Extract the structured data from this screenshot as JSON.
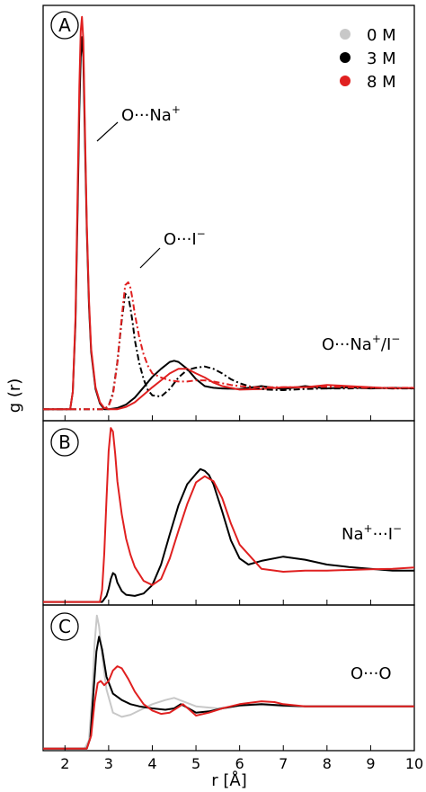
{
  "figure": {
    "ylabel": "g (r)",
    "xlabel": "r [Å]",
    "x_ticks": [
      "2",
      "3",
      "4",
      "5",
      "6",
      "7",
      "8",
      "9",
      "10"
    ],
    "x_tick_values": [
      2,
      3,
      4,
      5,
      6,
      7,
      8,
      9,
      10
    ],
    "xlim": [
      1.5,
      10
    ],
    "legend": {
      "placement": "top-right",
      "items": [
        {
          "label": "0 M",
          "color": "#c8c8c8"
        },
        {
          "label": "3 M",
          "color": "#000000"
        },
        {
          "label": "8 M",
          "color": "#e02020"
        }
      ]
    }
  },
  "chart_data": [
    {
      "type": "line",
      "panel": "A",
      "ylim": [
        -0.2,
        7.0
      ],
      "annotations": {
        "ona": {
          "main": "O···Na",
          "sup": "+"
        },
        "oi": {
          "main": "O···I",
          "sup": "−"
        },
        "onai": {
          "main": "O···Na",
          "sup": "+",
          "mid": "/I",
          "sup2": "−"
        }
      },
      "series": [
        {
          "name": "3 M",
          "group": "O···Na+",
          "color": "#000000",
          "dash": "",
          "x": [
            1.5,
            2.12,
            2.18,
            2.24,
            2.29,
            2.33,
            2.36,
            2.39,
            2.42,
            2.46,
            2.5,
            2.55,
            2.6,
            2.7,
            2.8,
            2.9,
            3.0,
            3.2,
            3.4,
            3.6,
            3.8,
            4.0,
            4.2,
            4.4,
            4.5,
            4.6,
            4.8,
            5.0,
            5.2,
            5.4,
            5.6,
            6.0,
            6.5,
            7.0,
            7.5,
            8.0,
            8.5,
            9.0,
            9.5,
            10.0
          ],
          "y": [
            0,
            0,
            0.3,
            1.5,
            3.5,
            5.2,
            6.1,
            6.45,
            6.1,
            4.6,
            3.1,
            1.8,
            1.0,
            0.35,
            0.1,
            0.0,
            0.0,
            0.02,
            0.08,
            0.2,
            0.38,
            0.56,
            0.7,
            0.82,
            0.84,
            0.82,
            0.7,
            0.52,
            0.4,
            0.37,
            0.36,
            0.35,
            0.4,
            0.35,
            0.4,
            0.36,
            0.38,
            0.36,
            0.37,
            0.36
          ]
        },
        {
          "name": "8 M",
          "group": "O···Na+",
          "color": "#e02020",
          "dash": "",
          "x": [
            1.5,
            2.12,
            2.18,
            2.24,
            2.29,
            2.33,
            2.36,
            2.39,
            2.42,
            2.46,
            2.5,
            2.55,
            2.6,
            2.7,
            2.8,
            2.9,
            3.0,
            3.2,
            3.4,
            3.6,
            3.8,
            4.0,
            4.2,
            4.4,
            4.6,
            4.8,
            5.0,
            5.2,
            5.4,
            5.6,
            6.0,
            6.5,
            7.0,
            7.5,
            8.0,
            8.5,
            9.0,
            9.5,
            10.0
          ],
          "y": [
            0,
            0,
            0.3,
            1.6,
            3.8,
            5.6,
            6.55,
            6.8,
            6.4,
            4.8,
            3.2,
            1.9,
            1.05,
            0.38,
            0.12,
            0.02,
            0.0,
            0.0,
            0.04,
            0.12,
            0.25,
            0.38,
            0.5,
            0.62,
            0.7,
            0.7,
            0.62,
            0.55,
            0.46,
            0.4,
            0.34,
            0.35,
            0.38,
            0.38,
            0.42,
            0.4,
            0.38,
            0.36,
            0.37
          ]
        },
        {
          "name": "3 M",
          "group": "O···I−",
          "color": "#000000",
          "dash": "7 3 2 3",
          "x": [
            1.5,
            2.6,
            2.9,
            3.0,
            3.1,
            3.2,
            3.3,
            3.38,
            3.45,
            3.5,
            3.55,
            3.6,
            3.7,
            3.8,
            3.9,
            4.0,
            4.2,
            4.4,
            4.6,
            4.8,
            5.0,
            5.2,
            5.4,
            5.6,
            5.8,
            6.0,
            6.3,
            6.6,
            7.0,
            7.5,
            8.0,
            8.5,
            9.0,
            9.5,
            10.0
          ],
          "y": [
            0,
            0,
            0.0,
            0.06,
            0.28,
            0.82,
            1.55,
            2.0,
            1.95,
            1.75,
            1.5,
            1.2,
            0.8,
            0.52,
            0.33,
            0.24,
            0.22,
            0.35,
            0.55,
            0.68,
            0.72,
            0.74,
            0.7,
            0.62,
            0.52,
            0.45,
            0.38,
            0.34,
            0.33,
            0.35,
            0.36,
            0.36,
            0.37,
            0.36,
            0.36
          ]
        },
        {
          "name": "8 M",
          "group": "O···I−",
          "color": "#e02020",
          "dash": "7 3 2 3",
          "x": [
            1.5,
            2.6,
            2.9,
            3.0,
            3.1,
            3.2,
            3.3,
            3.38,
            3.45,
            3.5,
            3.55,
            3.6,
            3.7,
            3.8,
            3.9,
            4.0,
            4.2,
            4.4,
            4.6,
            4.8,
            5.0,
            5.2,
            5.4,
            5.6,
            5.8,
            6.0,
            6.3,
            6.6,
            7.0,
            7.5,
            8.0,
            8.5,
            9.0,
            9.5,
            10.0
          ],
          "y": [
            0,
            0,
            0.0,
            0.06,
            0.25,
            0.8,
            1.6,
            2.15,
            2.2,
            2.1,
            1.9,
            1.65,
            1.25,
            0.95,
            0.75,
            0.62,
            0.55,
            0.5,
            0.48,
            0.48,
            0.5,
            0.5,
            0.48,
            0.45,
            0.42,
            0.4,
            0.38,
            0.38,
            0.38,
            0.38,
            0.39,
            0.38,
            0.37,
            0.37,
            0.37
          ]
        }
      ]
    },
    {
      "type": "line",
      "panel": "B",
      "ylim": [
        -0.05,
        3.0
      ],
      "annotations": {
        "nai": {
          "main": "Na",
          "sup": "+",
          "mid": "···I",
          "sup2": "−"
        }
      },
      "series": [
        {
          "name": "3 M",
          "color": "#000000",
          "dash": "",
          "x": [
            1.5,
            2.85,
            2.95,
            3.0,
            3.05,
            3.1,
            3.15,
            3.2,
            3.3,
            3.4,
            3.6,
            3.8,
            4.0,
            4.2,
            4.4,
            4.6,
            4.8,
            5.0,
            5.1,
            5.2,
            5.3,
            5.4,
            5.6,
            5.8,
            6.0,
            6.2,
            6.5,
            7.0,
            7.5,
            8.0,
            8.5,
            9.0,
            9.5,
            10.0
          ],
          "y": [
            0,
            0,
            0.1,
            0.22,
            0.38,
            0.48,
            0.45,
            0.32,
            0.18,
            0.12,
            0.1,
            0.14,
            0.28,
            0.62,
            1.12,
            1.6,
            1.95,
            2.12,
            2.2,
            2.17,
            2.1,
            1.95,
            1.5,
            1.02,
            0.72,
            0.62,
            0.68,
            0.75,
            0.7,
            0.62,
            0.58,
            0.55,
            0.52,
            0.52
          ]
        },
        {
          "name": "8 M",
          "color": "#e02020",
          "dash": "",
          "x": [
            1.5,
            2.8,
            2.85,
            2.9,
            2.95,
            3.0,
            3.05,
            3.1,
            3.15,
            3.2,
            3.3,
            3.4,
            3.5,
            3.6,
            3.8,
            4.0,
            4.2,
            4.4,
            4.6,
            4.8,
            5.0,
            5.2,
            5.4,
            5.6,
            5.8,
            6.0,
            6.5,
            7.0,
            7.5,
            8.0,
            8.5,
            9.0,
            9.5,
            10.0
          ],
          "y": [
            0,
            0,
            0.2,
            0.8,
            1.7,
            2.5,
            2.88,
            2.82,
            2.45,
            2.0,
            1.45,
            1.05,
            0.78,
            0.58,
            0.35,
            0.28,
            0.38,
            0.72,
            1.18,
            1.62,
            1.98,
            2.08,
            2.0,
            1.72,
            1.3,
            0.95,
            0.55,
            0.5,
            0.52,
            0.52,
            0.53,
            0.54,
            0.55,
            0.57
          ]
        }
      ]
    },
    {
      "type": "line",
      "panel": "C",
      "ylim": [
        -0.05,
        3.4
      ],
      "annotations": {
        "oo": {
          "main": "O···O"
        }
      },
      "series": [
        {
          "name": "0 M",
          "color": "#c8c8c8",
          "dash": "",
          "x": [
            1.5,
            2.45,
            2.55,
            2.62,
            2.68,
            2.73,
            2.78,
            2.85,
            2.95,
            3.1,
            3.3,
            3.5,
            3.7,
            4.0,
            4.3,
            4.5,
            4.7,
            5.0,
            5.5,
            6.0,
            6.5,
            7.0,
            8.0,
            9.0,
            10.0
          ],
          "y": [
            0,
            0,
            0.2,
            1.2,
            2.5,
            3.15,
            2.9,
            2.2,
            1.4,
            0.85,
            0.75,
            0.8,
            0.9,
            1.05,
            1.15,
            1.2,
            1.12,
            1.0,
            0.95,
            1.02,
            1.03,
            1.0,
            1.0,
            1.0,
            1.0
          ]
        },
        {
          "name": "3 M",
          "color": "#000000",
          "dash": "",
          "x": [
            1.5,
            2.5,
            2.58,
            2.65,
            2.72,
            2.78,
            2.85,
            2.95,
            3.1,
            3.3,
            3.5,
            3.7,
            4.0,
            4.3,
            4.5,
            4.65,
            4.8,
            5.0,
            5.3,
            5.6,
            6.0,
            6.5,
            7.0,
            7.5,
            8.0,
            9.0,
            10.0
          ],
          "y": [
            0,
            0,
            0.25,
            1.3,
            2.3,
            2.65,
            2.35,
            1.7,
            1.3,
            1.15,
            1.05,
            1.0,
            0.95,
            0.92,
            0.95,
            1.05,
            0.97,
            0.85,
            0.88,
            0.95,
            1.02,
            1.05,
            1.02,
            1.0,
            1.0,
            1.0,
            1.0
          ]
        },
        {
          "name": "8 M",
          "color": "#e02020",
          "dash": "",
          "x": [
            1.5,
            2.5,
            2.6,
            2.68,
            2.75,
            2.82,
            2.9,
            3.0,
            3.1,
            3.2,
            3.3,
            3.45,
            3.6,
            3.8,
            4.0,
            4.2,
            4.4,
            4.55,
            4.7,
            4.85,
            5.0,
            5.3,
            5.6,
            6.0,
            6.5,
            6.8,
            7.0,
            7.5,
            8.0,
            9.0,
            10.0
          ],
          "y": [
            0,
            0,
            0.3,
            1.1,
            1.55,
            1.6,
            1.5,
            1.6,
            1.85,
            1.95,
            1.9,
            1.65,
            1.35,
            1.05,
            0.9,
            0.82,
            0.85,
            0.95,
            1.05,
            0.92,
            0.78,
            0.85,
            0.95,
            1.05,
            1.12,
            1.1,
            1.05,
            1.0,
            1.0,
            1.0,
            1.0
          ]
        }
      ]
    }
  ]
}
